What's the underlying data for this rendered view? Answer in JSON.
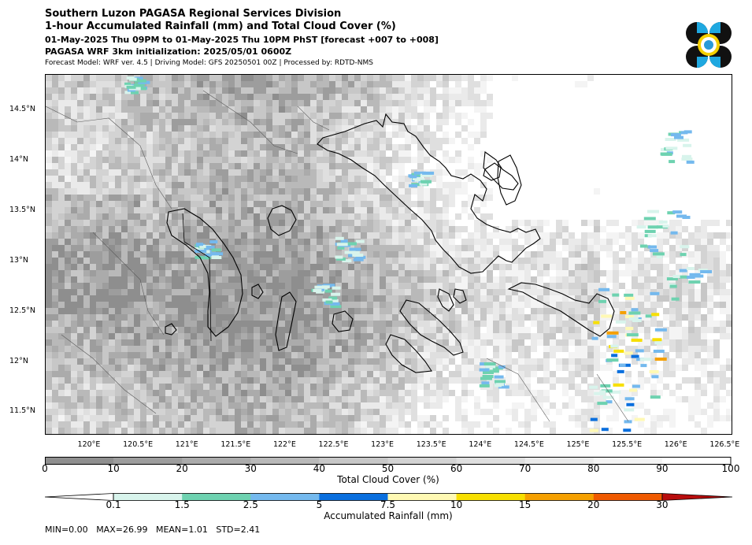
{
  "header": {
    "title": "Southern Luzon PAGASA Regional Services Division",
    "subtitle": "1-hour Accumulated Rainfall (mm) and Total Cloud Cover (%)",
    "valid_time": "01-May-2025 Thu 09PM to 01-May-2025 Thu 10PM PhST [forecast +007 to +008]",
    "init": "PAGASA WRF 3km initialization: 2025/05/01 0600Z",
    "credits": "Forecast Model: WRF ver. 4.5 | Driving Model: GFS 20250501 00Z | Processed by: RDTD-NMS"
  },
  "map": {
    "lat_labels": [
      "14.5°N",
      "14°N",
      "13.5°N",
      "13°N",
      "12.5°N",
      "12°N",
      "11.5°N"
    ],
    "lon_labels": [
      "120°E",
      "120.5°E",
      "121°E",
      "121.5°E",
      "122°E",
      "122.5°E",
      "123°E",
      "123.5°E",
      "124°E",
      "124.5°E",
      "125°E",
      "125.5°E",
      "126°E",
      "126.5°E"
    ],
    "colors": {
      "land_outline": "#000000",
      "cloud_low": "#8c8c8c",
      "cloud_high": "#ffffff"
    }
  },
  "cloud_colorbar": {
    "title": "Total Cloud Cover (%)",
    "ticks": [
      "0",
      "10",
      "20",
      "30",
      "40",
      "50",
      "60",
      "70",
      "80",
      "90",
      "100"
    ],
    "colors": [
      "#8f8f8f",
      "#9d9d9d",
      "#ababab",
      "#b9b9b9",
      "#c7c7c7",
      "#d3d3d3",
      "#dfdfdf",
      "#eaeaea",
      "#f4f4f4",
      "#ffffff"
    ]
  },
  "rain_colorbar": {
    "title": "Accumulated Rainfall (mm)",
    "ticks": [
      "0.1",
      "1.5",
      "2.5",
      "5",
      "7.5",
      "10",
      "15",
      "20",
      "30"
    ],
    "colors": [
      "#ffffff",
      "#d8f4ec",
      "#6ed2b0",
      "#74b9ee",
      "#0a6fde",
      "#fff9b4",
      "#f7df00",
      "#f5a000",
      "#f05a00",
      "#b80d0d"
    ]
  },
  "stats": {
    "min": "MIN=0.00",
    "max": "MAX=26.99",
    "mean": "MEAN=1.01",
    "std": "STD=2.41"
  }
}
